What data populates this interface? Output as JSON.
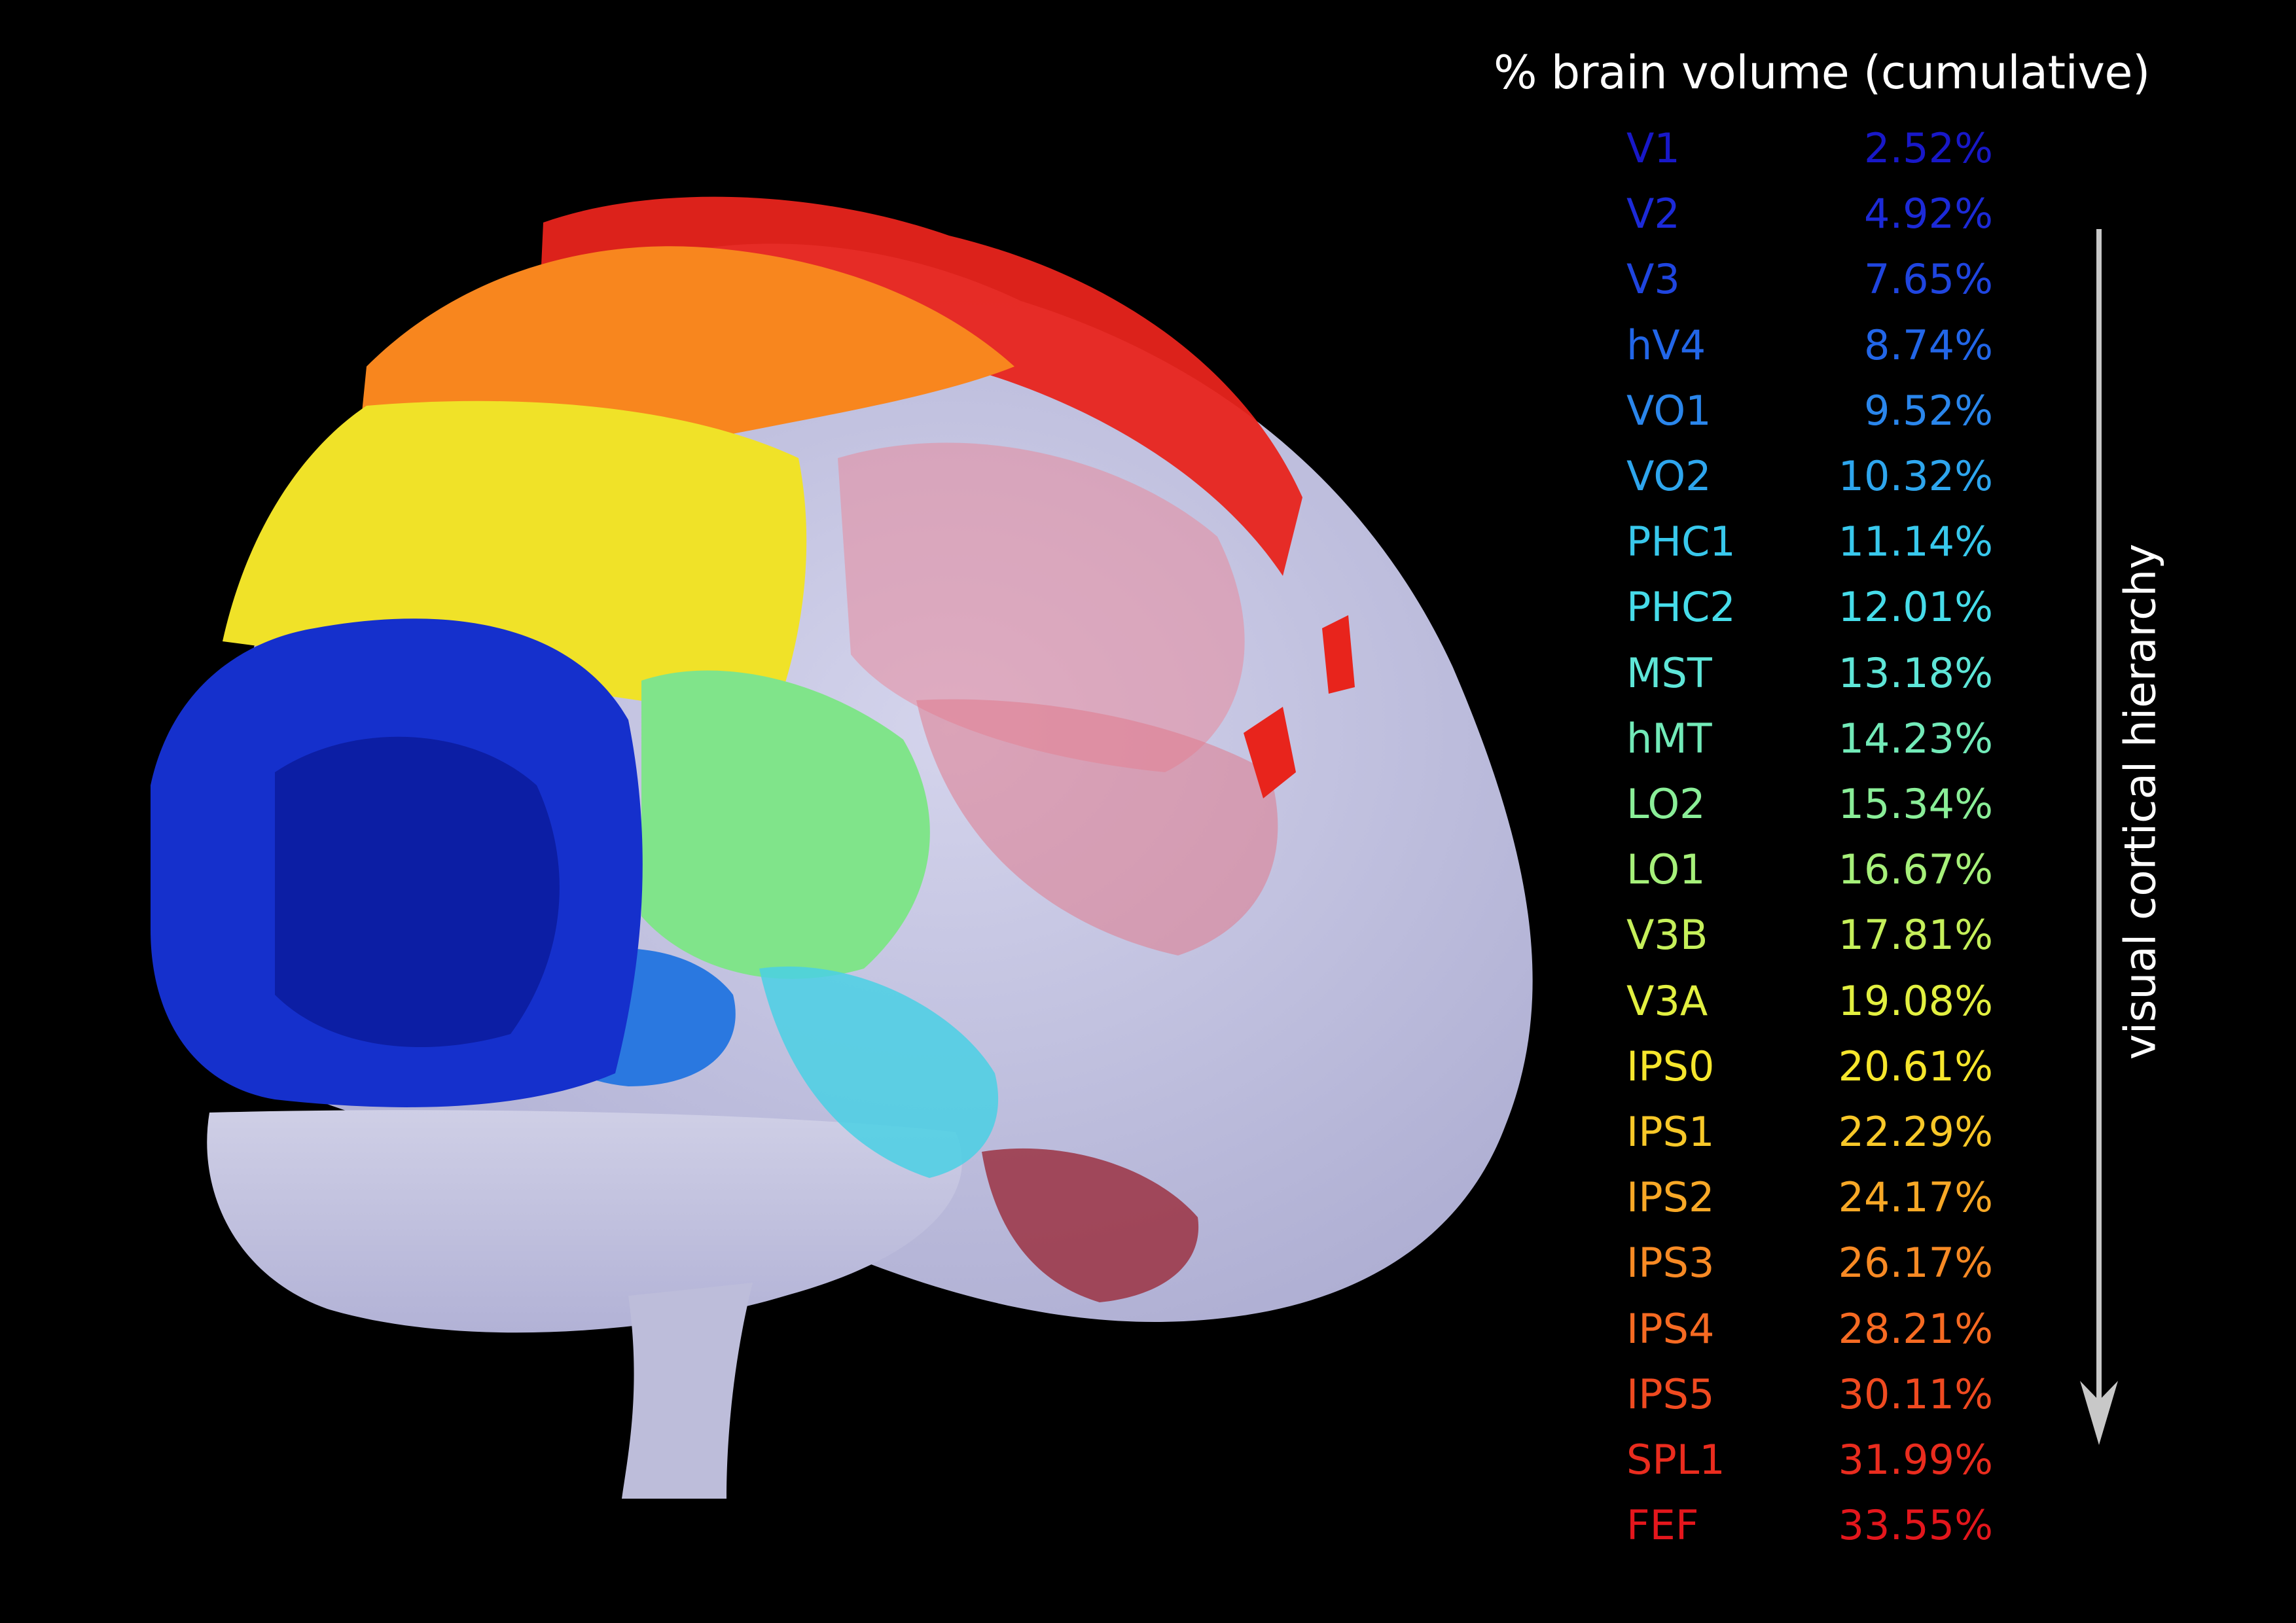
{
  "title": "% brain volume (cumulative)",
  "hierarchy_label": "visual cortical hierarchy",
  "regions": [
    {
      "name": "V1",
      "percent": "2.52%",
      "color": "#1818c8"
    },
    {
      "name": "V2",
      "percent": "4.92%",
      "color": "#1c2ad8"
    },
    {
      "name": "V3",
      "percent": "7.65%",
      "color": "#1f45e0"
    },
    {
      "name": "hV4",
      "percent": "8.74%",
      "color": "#2266e8"
    },
    {
      "name": "VO1",
      "percent": "9.52%",
      "color": "#2a86ec"
    },
    {
      "name": "VO2",
      "percent": "10.32%",
      "color": "#2ea6ee"
    },
    {
      "name": "PHC1",
      "percent": "11.14%",
      "color": "#38c8ec"
    },
    {
      "name": "PHC2",
      "percent": "12.01%",
      "color": "#46dcea"
    },
    {
      "name": "MST",
      "percent": "13.18%",
      "color": "#5ee6d8"
    },
    {
      "name": "hMT",
      "percent": "14.23%",
      "color": "#72eab8"
    },
    {
      "name": "LO2",
      "percent": "15.34%",
      "color": "#8aee98"
    },
    {
      "name": "LO1",
      "percent": "16.67%",
      "color": "#a6f07a"
    },
    {
      "name": "V3B",
      "percent": "17.81%",
      "color": "#c6f05a"
    },
    {
      "name": "V3A",
      "percent": "19.08%",
      "color": "#e2f040"
    },
    {
      "name": "IPS0",
      "percent": "20.61%",
      "color": "#f6e62c"
    },
    {
      "name": "IPS1",
      "percent": "22.29%",
      "color": "#f8c828"
    },
    {
      "name": "IPS2",
      "percent": "24.17%",
      "color": "#f8a826"
    },
    {
      "name": "IPS3",
      "percent": "26.17%",
      "color": "#f88a24"
    },
    {
      "name": "IPS4",
      "percent": "28.21%",
      "color": "#f66a22"
    },
    {
      "name": "IPS5",
      "percent": "30.11%",
      "color": "#f04a20"
    },
    {
      "name": "SPL1",
      "percent": "31.99%",
      "color": "#ea2c1e"
    },
    {
      "name": "FEF",
      "percent": "33.55%",
      "color": "#e4161c"
    }
  ]
}
